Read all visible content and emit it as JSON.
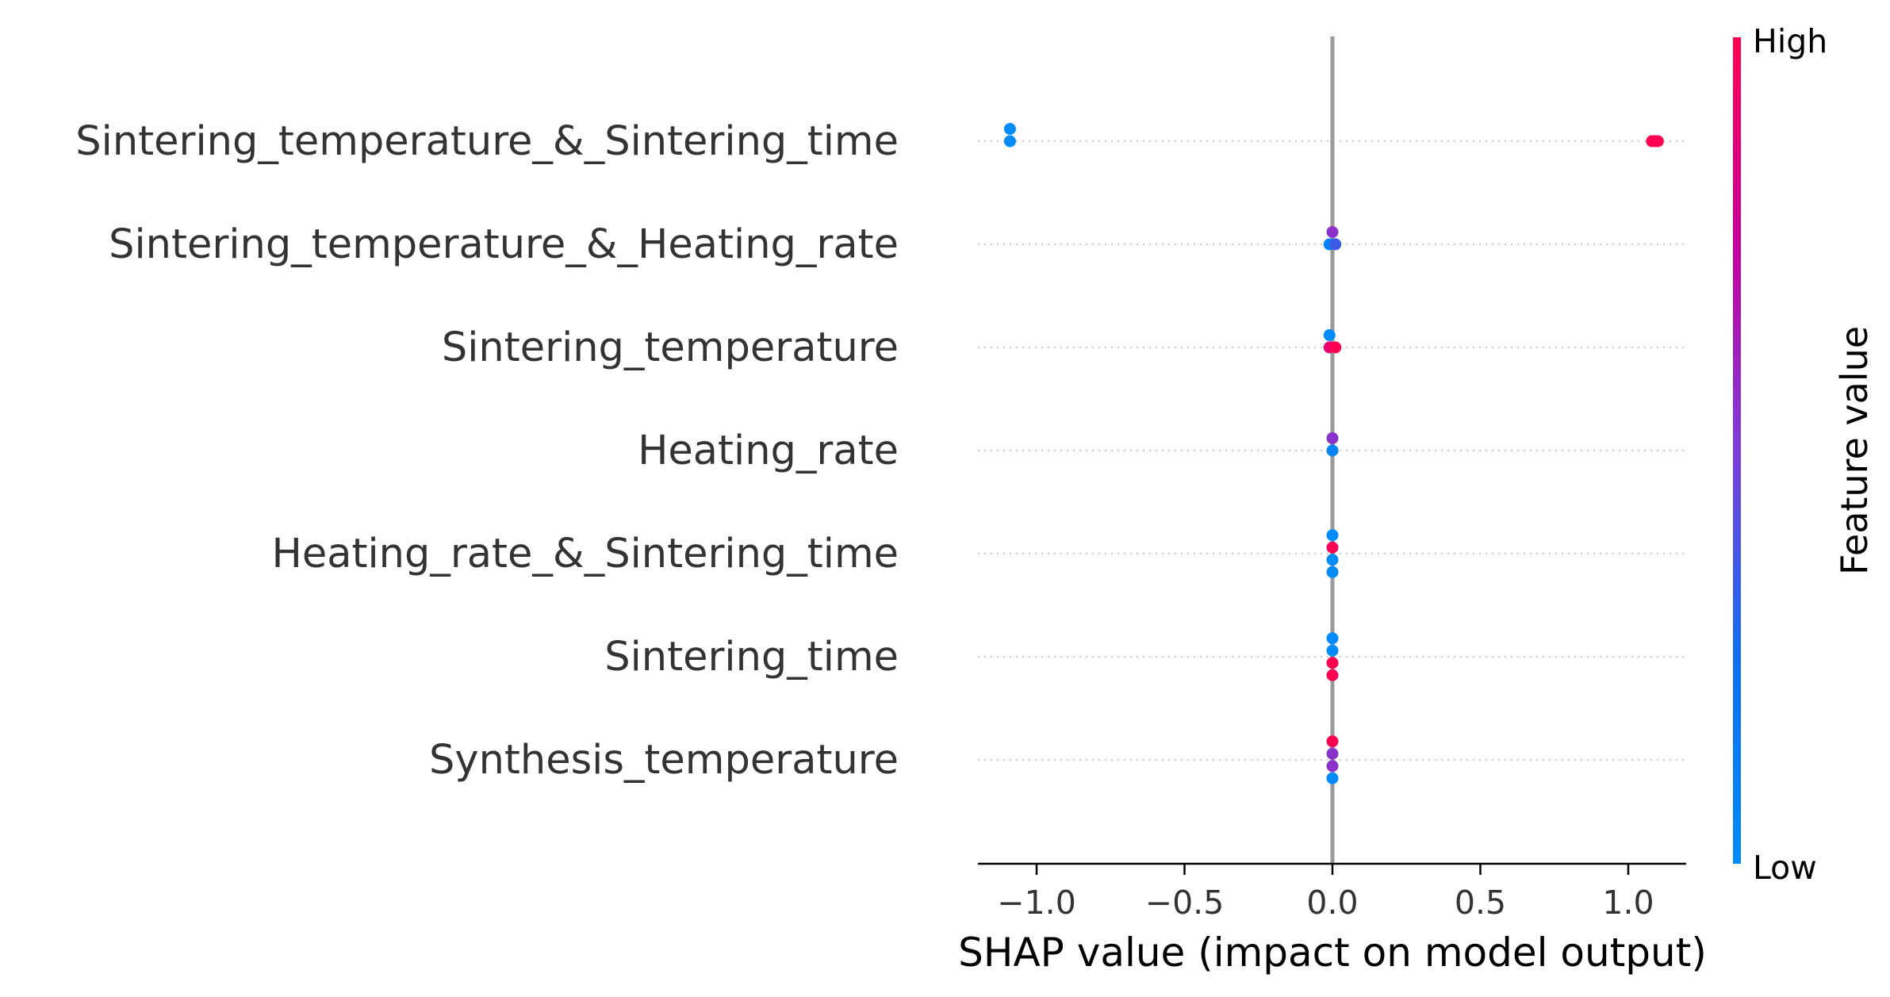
{
  "chart_data": {
    "type": "scatter",
    "subtype": "shap-beeswarm",
    "title": "",
    "xlabel": "SHAP value (impact on model output)",
    "xlim": [
      -1.2,
      1.2
    ],
    "xticks": [
      -1.0,
      -0.5,
      0.0,
      0.5,
      1.0
    ],
    "xtick_labels": [
      "−1.0",
      "−0.5",
      "0.0",
      "0.5",
      "1.0"
    ],
    "grid": false,
    "features": [
      {
        "name": "Sintering_temperature_&_Sintering_time",
        "points": [
          {
            "shap": -1.09,
            "feature_value": 0.0,
            "stack": 1
          },
          {
            "shap": -1.09,
            "feature_value": 0.0,
            "stack": 0
          },
          {
            "shap": 1.08,
            "feature_value": 1.0,
            "stack": 0
          },
          {
            "shap": 1.09,
            "feature_value": 1.0,
            "stack": 0
          },
          {
            "shap": 1.1,
            "feature_value": 1.0,
            "stack": 0
          }
        ]
      },
      {
        "name": "Sintering_temperature_&_Heating_rate",
        "points": [
          {
            "shap": 0.0,
            "feature_value": 0.55,
            "stack": 1
          },
          {
            "shap": -0.01,
            "feature_value": 0.1,
            "stack": 0
          },
          {
            "shap": 0.01,
            "feature_value": 0.35,
            "stack": 0
          }
        ]
      },
      {
        "name": "Sintering_temperature",
        "points": [
          {
            "shap": -0.01,
            "feature_value": 0.0,
            "stack": 1
          },
          {
            "shap": -0.01,
            "feature_value": 0.9,
            "stack": 0
          },
          {
            "shap": 0.01,
            "feature_value": 1.0,
            "stack": 0
          }
        ]
      },
      {
        "name": "Heating_rate",
        "points": [
          {
            "shap": 0.0,
            "feature_value": 0.55,
            "stack": 1
          },
          {
            "shap": 0.0,
            "feature_value": 0.05,
            "stack": 0
          }
        ]
      },
      {
        "name": "Heating_rate_&_Sintering_time",
        "points": [
          {
            "shap": 0.0,
            "feature_value": 0.0,
            "stack": 1.5
          },
          {
            "shap": 0.0,
            "feature_value": 1.0,
            "stack": 0.5
          },
          {
            "shap": 0.0,
            "feature_value": 0.0,
            "stack": -0.5
          },
          {
            "shap": 0.0,
            "feature_value": 0.0,
            "stack": -1.5
          }
        ]
      },
      {
        "name": "Sintering_time",
        "points": [
          {
            "shap": 0.0,
            "feature_value": 0.0,
            "stack": 1.5
          },
          {
            "shap": 0.0,
            "feature_value": 0.0,
            "stack": 0.5
          },
          {
            "shap": 0.0,
            "feature_value": 1.0,
            "stack": -0.5
          },
          {
            "shap": 0.0,
            "feature_value": 1.0,
            "stack": -1.5
          }
        ]
      },
      {
        "name": "Synthesis_temperature",
        "points": [
          {
            "shap": 0.0,
            "feature_value": 1.0,
            "stack": 1.5
          },
          {
            "shap": 0.0,
            "feature_value": 0.55,
            "stack": 0.5
          },
          {
            "shap": 0.0,
            "feature_value": 0.55,
            "stack": -0.5
          },
          {
            "shap": 0.0,
            "feature_value": 0.0,
            "stack": -1.5
          }
        ]
      }
    ],
    "colorbar": {
      "label": "Feature value",
      "high_label": "High",
      "low_label": "Low",
      "low_color": "#008bfb",
      "high_color": "#ff0052"
    },
    "zero_line_color": "#999999"
  }
}
